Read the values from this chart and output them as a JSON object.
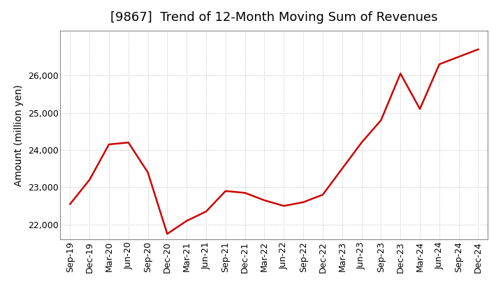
{
  "title": "[9867]  Trend of 12-Month Moving Sum of Revenues",
  "ylabel": "Amount (million yen)",
  "line_color": "#cc0000",
  "background_color": "#ffffff",
  "grid_color": "#bbbbbb",
  "x_labels": [
    "Sep-19",
    "Dec-19",
    "Mar-20",
    "Jun-20",
    "Sep-20",
    "Dec-20",
    "Mar-21",
    "Jun-21",
    "Sep-21",
    "Dec-21",
    "Mar-22",
    "Jun-22",
    "Sep-22",
    "Dec-22",
    "Mar-23",
    "Jun-23",
    "Sep-23",
    "Dec-23",
    "Mar-24",
    "Jun-24",
    "Sep-24",
    "Dec-24"
  ],
  "y_values": [
    22550,
    23200,
    24150,
    24200,
    23400,
    21750,
    22100,
    22350,
    22900,
    22850,
    22650,
    22500,
    22600,
    22800,
    23500,
    24200,
    24800,
    26050,
    25100,
    26300,
    26500,
    26700
  ],
  "ylim": [
    21600,
    27200
  ],
  "yticks": [
    22000,
    23000,
    24000,
    25000,
    26000
  ],
  "title_fontsize": 13,
  "ylabel_fontsize": 10,
  "tick_fontsize": 9,
  "linewidth": 1.8
}
